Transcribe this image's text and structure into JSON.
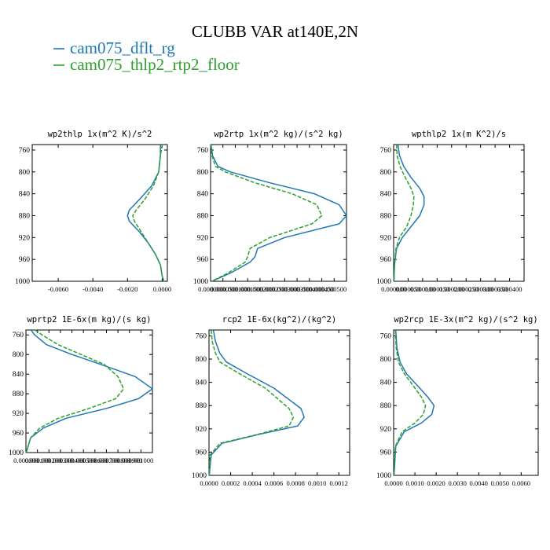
{
  "figure": {
    "title": "CLUBB VAR at140E,2N",
    "legend": [
      {
        "label": "cam075_dflt_rg",
        "color": "#1f77b4",
        "dash": "solid"
      },
      {
        "label": "cam075_thlp2_rtp2_floor",
        "color": "#2ca02c",
        "dash": "dashed"
      }
    ]
  },
  "chart_data": [
    {
      "type": "line",
      "title": "wp2thlp  1x(m^2 K)/s^2",
      "ylim": [
        1000,
        750
      ],
      "yticks": [
        760,
        800,
        840,
        880,
        920,
        960,
        1000
      ],
      "xlim": [
        -0.0075,
        0.0003
      ],
      "xticks": [
        -0.006,
        -0.004,
        -0.002,
        0.0
      ],
      "xtick_labels": [
        "-0.0060",
        "-0.0040",
        "-0.0020",
        "0.0000"
      ],
      "series": [
        {
          "name": "cam075_dflt_rg",
          "x": [
            -0.0001,
            -0.0001,
            -0.0002,
            -0.0006,
            -0.0013,
            -0.0019,
            -0.002,
            -0.0019,
            -0.0013,
            -0.0008,
            -0.0004,
            -0.0001,
            0.0,
            0.0001
          ],
          "y": [
            750,
            770,
            800,
            825,
            850,
            870,
            880,
            890,
            910,
            930,
            950,
            970,
            990,
            1000
          ]
        },
        {
          "name": "cam075_thlp2_rtp2_floor",
          "x": [
            0.0,
            -0.0001,
            -0.0002,
            -0.0005,
            -0.001,
            -0.0015,
            -0.0017,
            -0.0016,
            -0.0012,
            -0.0008,
            -0.0004,
            -0.0001,
            0.0,
            0.0001
          ],
          "y": [
            750,
            770,
            800,
            825,
            850,
            870,
            880,
            890,
            910,
            930,
            950,
            970,
            990,
            1000
          ]
        }
      ]
    },
    {
      "type": "line",
      "title": "wp2rtp  1x(m^2 kg)/(s^2 kg)",
      "ylim": [
        1000,
        750
      ],
      "yticks": [
        760,
        800,
        840,
        880,
        920,
        960,
        1000
      ],
      "xlim": [
        0.0,
        0.00055
      ],
      "xticks": [
        0.0,
        5e-05,
        0.0001,
        0.00015,
        0.0002,
        0.00025,
        0.0003,
        0.00035,
        0.0004,
        0.00045,
        0.0005
      ],
      "xtick_labels": [
        "0.000000",
        "0.000050",
        "0.000100",
        "0.000150",
        "0.000200",
        "0.000250",
        "0.000300",
        "0.000350",
        "0.000400",
        "0.000450",
        "0.000500"
      ],
      "series": [
        {
          "name": "cam075_dflt_rg",
          "x": [
            2e-06,
            8e-06,
            3e-05,
            8e-05,
            0.00024,
            0.00042,
            0.00052,
            0.00055,
            0.00052,
            0.0003,
            0.00019,
            0.00018,
            0.00016,
            8e-05,
            5e-06
          ],
          "y": [
            750,
            770,
            790,
            800,
            820,
            840,
            860,
            880,
            895,
            920,
            940,
            955,
            965,
            985,
            1000
          ]
        },
        {
          "name": "cam075_thlp2_rtp2_floor",
          "x": [
            1e-06,
            5e-06,
            2e-05,
            6e-05,
            0.00018,
            0.00033,
            0.00043,
            0.00045,
            0.00041,
            0.00024,
            0.00016,
            0.00015,
            0.00014,
            7e-05,
            4e-06
          ],
          "y": [
            750,
            770,
            790,
            800,
            820,
            840,
            860,
            880,
            895,
            920,
            940,
            955,
            965,
            985,
            1000
          ]
        }
      ]
    },
    {
      "type": "line",
      "title": "wpthlp2  1x(m K^2)/s",
      "ylim": [
        1000,
        750
      ],
      "yticks": [
        760,
        800,
        840,
        880,
        920,
        960,
        1000
      ],
      "xlim": [
        0.0,
        0.00045
      ],
      "xticks": [
        0.0,
        5e-05,
        0.0001,
        0.00015,
        0.0002,
        0.00025,
        0.0003,
        0.00035,
        0.0004
      ],
      "xtick_labels": [
        "0.000000",
        "0.000050",
        "0.000100",
        "0.000150",
        "0.000200",
        "0.000250",
        "0.000300",
        "0.000350",
        "0.000400"
      ],
      "series": [
        {
          "name": "cam075_dflt_rg",
          "x": [
            1.5e-05,
            2e-05,
            3.5e-05,
            6e-05,
            9e-05,
            0.000105,
            0.000105,
            9e-05,
            6e-05,
            3e-05,
            1e-05,
            3e-06,
            1e-06
          ],
          "y": [
            750,
            770,
            790,
            810,
            830,
            845,
            860,
            880,
            900,
            920,
            940,
            970,
            1000
          ]
        },
        {
          "name": "cam075_thlp2_rtp2_floor",
          "x": [
            1e-05,
            1.2e-05,
            2.2e-05,
            4e-05,
            6e-05,
            7e-05,
            6.8e-05,
            6e-05,
            4.5e-05,
            2e-05,
            8e-06,
            3e-06,
            1e-06
          ],
          "y": [
            750,
            770,
            790,
            810,
            830,
            845,
            860,
            880,
            900,
            920,
            940,
            970,
            1000
          ]
        }
      ]
    },
    {
      "type": "line",
      "title": "wprtp2  1E-6x(m kg)/(s kg)",
      "ylim": [
        1000,
        750
      ],
      "yticks": [
        760,
        800,
        840,
        880,
        920,
        960,
        1000
      ],
      "xlim": [
        0.0,
        0.0011
      ],
      "xticks": [
        0.0,
        0.0001,
        0.0002,
        0.0003,
        0.0004,
        0.0005,
        0.0006,
        0.0007,
        0.0008,
        0.0009,
        0.001
      ],
      "xtick_labels": [
        "0.000000",
        "0.000100",
        "0.000200",
        "0.000300",
        "0.000400",
        "0.000500",
        "0.000600",
        "0.000700",
        "0.000800",
        "0.000900",
        "0.001000"
      ],
      "series": [
        {
          "name": "cam075_dflt_rg",
          "x": [
            4.5e-05,
            7.5e-05,
            0.00018,
            0.0004,
            0.00065,
            0.00095,
            0.0011,
            0.00098,
            0.0007,
            0.00035,
            0.00015,
            4e-05,
            3e-06
          ],
          "y": [
            750,
            760,
            780,
            800,
            820,
            845,
            870,
            890,
            910,
            930,
            950,
            970,
            1000
          ]
        },
        {
          "name": "cam075_thlp2_rtp2_floor",
          "x": [
            8e-05,
            0.00014,
            0.00028,
            0.00048,
            0.00068,
            0.0008,
            0.00085,
            0.00078,
            0.00055,
            0.00028,
            0.00012,
            4e-05,
            3e-06
          ],
          "y": [
            750,
            760,
            780,
            800,
            820,
            845,
            870,
            890,
            910,
            930,
            950,
            970,
            1000
          ]
        }
      ]
    },
    {
      "type": "line",
      "title": "rcp2  1E-6x(kg^2)/(kg^2)",
      "ylim": [
        1000,
        750
      ],
      "yticks": [
        760,
        800,
        840,
        880,
        920,
        960,
        1000
      ],
      "xlim": [
        0.0,
        0.0013
      ],
      "xticks": [
        0.0,
        0.0002,
        0.0004,
        0.0006,
        0.0008,
        0.001,
        0.0012
      ],
      "xtick_labels": [
        "0.0000",
        "0.0002",
        "0.0004",
        "0.0006",
        "0.0008",
        "0.0010",
        "0.0012"
      ],
      "series": [
        {
          "name": "cam075_dflt_rg",
          "x": [
            4e-05,
            6e-05,
            0.0001,
            0.00016,
            0.00035,
            0.0006,
            0.00085,
            0.00088,
            0.00082,
            0.00045,
            0.00012,
            2e-05,
            2e-06
          ],
          "y": [
            750,
            770,
            790,
            805,
            825,
            850,
            885,
            900,
            915,
            930,
            945,
            965,
            1000
          ]
        },
        {
          "name": "cam075_thlp2_rtp2_floor",
          "x": [
            2e-05,
            3e-05,
            6e-05,
            0.0001,
            0.00028,
            0.00052,
            0.00074,
            0.00078,
            0.00074,
            0.00044,
            0.0001,
            1e-05,
            2e-06
          ],
          "y": [
            750,
            770,
            790,
            805,
            825,
            850,
            885,
            900,
            915,
            930,
            945,
            965,
            1000
          ]
        }
      ]
    },
    {
      "type": "line",
      "title": "wp2rcp  1E-3x(m^2 kg)/(s^2 kg)",
      "ylim": [
        1000,
        750
      ],
      "yticks": [
        760,
        800,
        840,
        880,
        920,
        960,
        1000
      ],
      "xlim": [
        0.0,
        0.0068
      ],
      "xticks": [
        0.0,
        0.001,
        0.002,
        0.003,
        0.004,
        0.005,
        0.006
      ],
      "xtick_labels": [
        "0.0000",
        "0.0010",
        "0.0020",
        "0.0030",
        "0.0040",
        "0.0050",
        "0.0060"
      ],
      "series": [
        {
          "name": "cam075_dflt_rg",
          "x": [
            0.0001,
            0.00015,
            0.0003,
            0.0006,
            0.0011,
            0.0016,
            0.0019,
            0.0018,
            0.0013,
            0.0005,
            0.0001,
            2e-05
          ],
          "y": [
            750,
            780,
            805,
            825,
            845,
            865,
            880,
            895,
            910,
            925,
            950,
            1000
          ]
        },
        {
          "name": "cam075_thlp2_rtp2_floor",
          "x": [
            8e-05,
            0.00012,
            0.00022,
            0.0005,
            0.0009,
            0.0013,
            0.0015,
            0.0014,
            0.001,
            0.0004,
            8e-05,
            2e-05
          ],
          "y": [
            750,
            780,
            805,
            825,
            845,
            865,
            880,
            895,
            910,
            925,
            950,
            1000
          ]
        }
      ]
    }
  ]
}
